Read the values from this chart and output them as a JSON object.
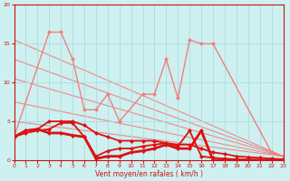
{
  "bg_color": "#cef0f0",
  "grid_color": "#aadddd",
  "line_color_light": "#f08888",
  "line_color_dark": "#dd1111",
  "xlabel": "Vent moyen/en rafales ( km/h )",
  "xlim": [
    0,
    23
  ],
  "ylim": [
    0,
    20
  ],
  "yticks": [
    0,
    5,
    10,
    15,
    20
  ],
  "xticks": [
    0,
    1,
    2,
    3,
    4,
    5,
    6,
    7,
    8,
    9,
    10,
    11,
    12,
    13,
    14,
    15,
    16,
    17,
    18,
    19,
    20,
    21,
    22,
    23
  ],
  "diagonal_lines": [
    {
      "x0": 0,
      "y0": 15.5,
      "x1": 23,
      "y1": 0.5
    },
    {
      "x0": 0,
      "y0": 13.0,
      "x1": 23,
      "y1": 0.5
    },
    {
      "x0": 0,
      "y0": 10.5,
      "x1": 23,
      "y1": 0.5
    },
    {
      "x0": 0,
      "y0": 7.5,
      "x1": 23,
      "y1": 0.5
    },
    {
      "x0": 0,
      "y0": 5.0,
      "x1": 23,
      "y1": 0.5
    }
  ],
  "pink_series": {
    "x": [
      0,
      3,
      4,
      5,
      6,
      7,
      8,
      9,
      11,
      12,
      13,
      14,
      15,
      16,
      17,
      22,
      23
    ],
    "y": [
      3.0,
      16.5,
      16.5,
      13.0,
      6.5,
      6.5,
      8.5,
      5.0,
      8.5,
      8.5,
      13.0,
      8.0,
      15.5,
      15.0,
      15.0,
      1.0,
      0.5
    ],
    "color": "#f08080",
    "lw": 1.0,
    "ms": 2.5
  },
  "dark_series": [
    {
      "x": [
        0,
        1,
        2,
        3,
        4,
        5,
        6,
        7,
        8,
        9,
        10,
        11,
        12,
        13,
        14,
        15,
        16,
        17,
        18,
        19,
        20,
        21,
        22,
        23
      ],
      "y": [
        3.0,
        3.8,
        4.0,
        5.0,
        5.0,
        5.0,
        4.5,
        3.5,
        3.0,
        2.5,
        2.5,
        2.5,
        2.5,
        2.2,
        2.0,
        2.0,
        1.5,
        1.0,
        0.8,
        0.5,
        0.4,
        0.3,
        0.2,
        0.1
      ],
      "lw": 1.3
    },
    {
      "x": [
        0,
        1,
        2,
        3,
        4,
        5,
        6,
        7,
        8,
        9,
        10,
        11,
        12,
        13,
        14,
        15,
        16,
        17,
        18,
        19,
        20,
        21,
        22,
        23
      ],
      "y": [
        3.0,
        3.5,
        3.8,
        4.0,
        4.8,
        4.8,
        3.0,
        0.5,
        1.2,
        1.5,
        1.5,
        1.8,
        2.0,
        2.2,
        1.8,
        3.8,
        0.5,
        0.3,
        0.2,
        0.1,
        0.1,
        0.05,
        0.0,
        0.0
      ],
      "lw": 1.3
    },
    {
      "x": [
        0,
        1,
        2,
        3,
        4,
        5,
        6,
        7,
        8,
        9,
        10,
        11,
        12,
        13,
        14,
        15,
        16,
        17,
        18,
        19,
        20,
        21,
        22,
        23
      ],
      "y": [
        3.0,
        3.8,
        4.0,
        3.5,
        3.5,
        3.2,
        3.0,
        0.2,
        0.5,
        0.5,
        1.0,
        1.2,
        1.5,
        2.0,
        1.5,
        1.5,
        3.8,
        0.0,
        0.0,
        0.0,
        0.0,
        0.0,
        0.0,
        0.0
      ],
      "lw": 2.0
    }
  ]
}
